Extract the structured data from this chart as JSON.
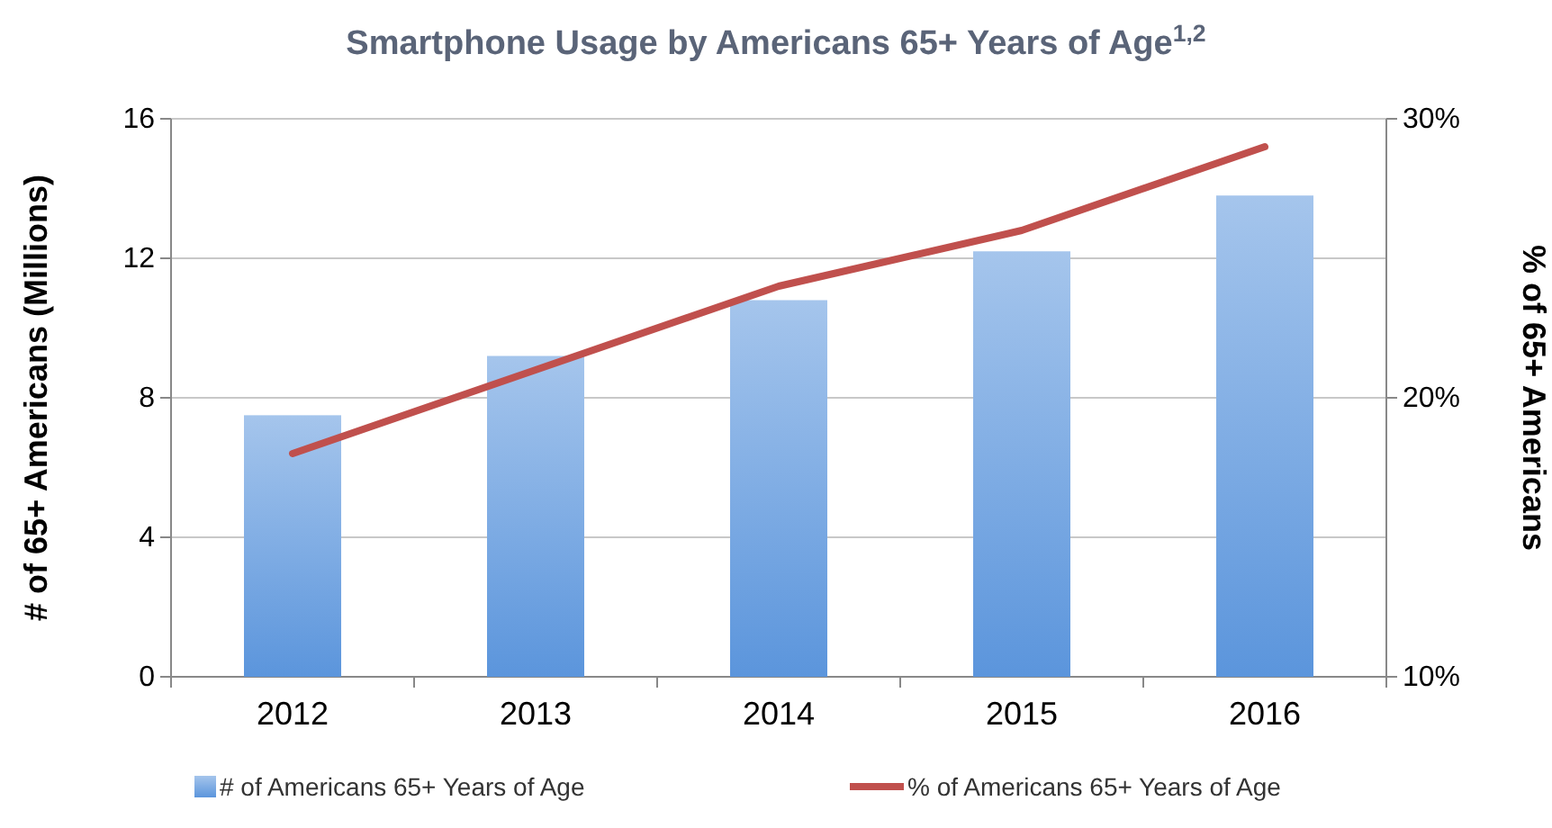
{
  "chart_data": {
    "type": "bar",
    "title": "Smartphone Usage by Americans 65+ Years of Age$^{1,2}$",
    "ylabel": "# of 65+ Americans (Millions)",
    "y2label": "% of 65+ Americans",
    "categories": [
      "2012",
      "2013",
      "2014",
      "2015",
      "2016"
    ],
    "series": [
      {
        "name": "# of Americans 65+ Years of Age",
        "color": "#5b95dc",
        "values": [
          7.5,
          9.2,
          10.8,
          12.2,
          13.8
        ]
      },
      {
        "name": "% of Americans 65+ Years of Age",
        "type": "line",
        "axis": "y2",
        "color": "#c0504d",
        "values": [
          18,
          21,
          24,
          26,
          29
        ]
      }
    ],
    "ylim": [
      0,
      16
    ],
    "yticks": [
      0,
      4,
      8,
      12,
      16
    ],
    "y2lim": [
      10,
      30
    ],
    "y2ticks": [
      {
        "value": 10,
        "label": "10%"
      },
      {
        "value": 20,
        "label": "20%"
      },
      {
        "value": 30,
        "label": "30%"
      }
    ],
    "grid": "y",
    "legend": "bottom",
    "marker": "none",
    "line_style": "solid"
  }
}
